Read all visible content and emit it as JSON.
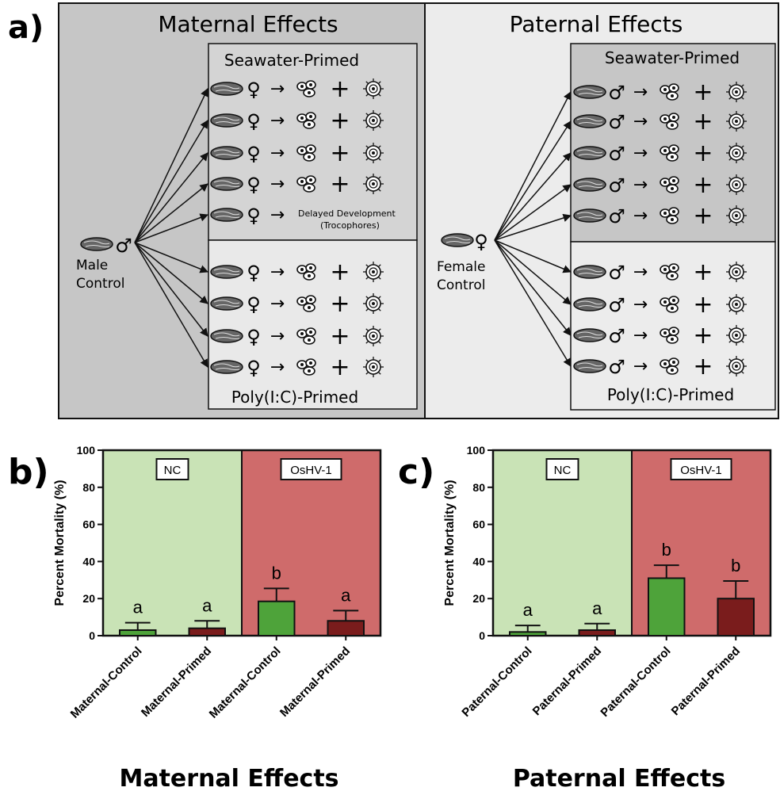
{
  "panel_a": {
    "letter": "a)",
    "maternal": {
      "title": "Maternal Effects",
      "parent_label_1": "Male",
      "parent_label_2": "Control",
      "parent_symbol": "♂",
      "offspring_symbol": "♀",
      "primed_label": "Seawater-Primed",
      "polyic_label": "Poly(I:C)-Primed",
      "delayed_label_1": "Delayed Development",
      "delayed_label_2": "(Trocophores)",
      "seawater_rows": 5,
      "polyic_rows": 4,
      "delayed_row_index": 4
    },
    "paternal": {
      "title": "Paternal Effects",
      "parent_label_1": "Female",
      "parent_label_2": "Control",
      "parent_symbol": "♀",
      "offspring_symbol": "♂",
      "primed_label": "Seawater-Primed",
      "polyic_label": "Poly(I:C)-Primed",
      "seawater_rows": 5,
      "polyic_rows": 4
    },
    "plus_sign": "+",
    "arrow_sign": "→"
  },
  "chart_data": [
    {
      "type": "bar",
      "panel_letter": "b)",
      "title": "Maternal Effects",
      "ylabel": "Percent Mortality (%)",
      "ylim": [
        0,
        100
      ],
      "yticks": [
        0,
        20,
        40,
        60,
        80,
        100
      ],
      "categories": [
        "Maternal-Control",
        "Maternal-Primed",
        "Maternal-Control",
        "Maternal-Primed"
      ],
      "values": [
        3,
        4,
        18.5,
        8
      ],
      "errors": [
        4,
        4,
        7,
        5.5
      ],
      "letters": [
        "a",
        "a",
        "b",
        "a"
      ],
      "groups": [
        {
          "label": "NC",
          "bg": "#c9e3b6",
          "span": [
            0,
            1
          ]
        },
        {
          "label": "OsHV-1",
          "bg": "#cf6b6b",
          "span": [
            2,
            3
          ]
        }
      ],
      "bar_colors": [
        "#4ea33a",
        "#7a1c1c",
        "#4ea33a",
        "#7a1c1c"
      ]
    },
    {
      "type": "bar",
      "panel_letter": "c)",
      "title": "Paternal Effects",
      "ylabel": "Percent Mortality (%)",
      "ylim": [
        0,
        100
      ],
      "yticks": [
        0,
        20,
        40,
        60,
        80,
        100
      ],
      "categories": [
        "Paternal-Control",
        "Paternal-Primed",
        "Paternal-Control",
        "Paternal-Primed"
      ],
      "values": [
        2,
        3,
        31,
        20
      ],
      "errors": [
        3.5,
        3.5,
        7,
        9.5
      ],
      "letters": [
        "a",
        "a",
        "b",
        "b"
      ],
      "groups": [
        {
          "label": "NC",
          "bg": "#c9e3b6",
          "span": [
            0,
            1
          ]
        },
        {
          "label": "OsHV-1",
          "bg": "#cf6b6b",
          "span": [
            2,
            3
          ]
        }
      ],
      "bar_colors": [
        "#4ea33a",
        "#7a1c1c",
        "#4ea33a",
        "#7a1c1c"
      ]
    }
  ]
}
